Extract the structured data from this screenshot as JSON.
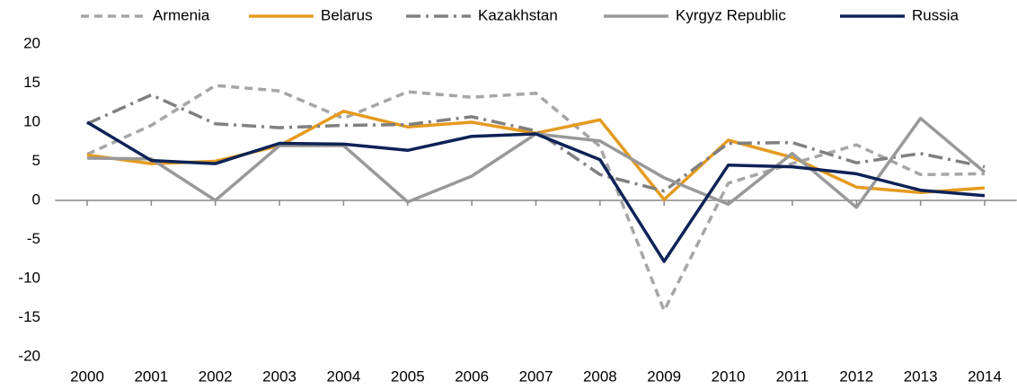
{
  "chart_data": {
    "type": "line",
    "categories": [
      "2000",
      "2001",
      "2002",
      "2003",
      "2004",
      "2005",
      "2006",
      "2007",
      "2008",
      "2009",
      "2010",
      "2011",
      "2012",
      "2013",
      "2014"
    ],
    "series": [
      {
        "name": "Armenia",
        "color": "#a6a6a6",
        "dash": "9,6",
        "values": [
          5.9,
          9.6,
          14.7,
          14.0,
          10.5,
          13.9,
          13.2,
          13.7,
          6.9,
          -14.1,
          2.2,
          4.7,
          7.1,
          3.3,
          3.4
        ]
      },
      {
        "name": "Belarus",
        "color": "#e59b1f",
        "dash": "none",
        "values": [
          5.8,
          4.7,
          5.0,
          7.0,
          11.4,
          9.4,
          10.0,
          8.6,
          10.3,
          0.1,
          7.7,
          5.5,
          1.7,
          1.0,
          1.6
        ]
      },
      {
        "name": "Kazakhstan",
        "color": "#808080",
        "dash": "16,6,3,6",
        "values": [
          9.8,
          13.5,
          9.8,
          9.3,
          9.6,
          9.7,
          10.7,
          8.9,
          3.3,
          1.2,
          7.3,
          7.4,
          4.8,
          6.0,
          4.3
        ]
      },
      {
        "name": "Kyrgyz Republic",
        "color": "#999999",
        "dash": "none",
        "values": [
          5.4,
          5.3,
          0.0,
          7.0,
          7.0,
          -0.2,
          3.1,
          8.5,
          7.6,
          2.9,
          -0.5,
          6.0,
          -0.9,
          10.5,
          3.6
        ]
      },
      {
        "name": "Russia",
        "color": "#0d2357",
        "dash": "none",
        "values": [
          10.0,
          5.1,
          4.7,
          7.3,
          7.2,
          6.4,
          8.2,
          8.5,
          5.2,
          -7.8,
          4.5,
          4.3,
          3.4,
          1.3,
          0.6
        ]
      }
    ],
    "ylim": [
      -20,
      20
    ],
    "yticks": [
      -20,
      -15,
      -10,
      -5,
      0,
      5,
      10,
      15,
      20
    ],
    "legend": "top"
  }
}
